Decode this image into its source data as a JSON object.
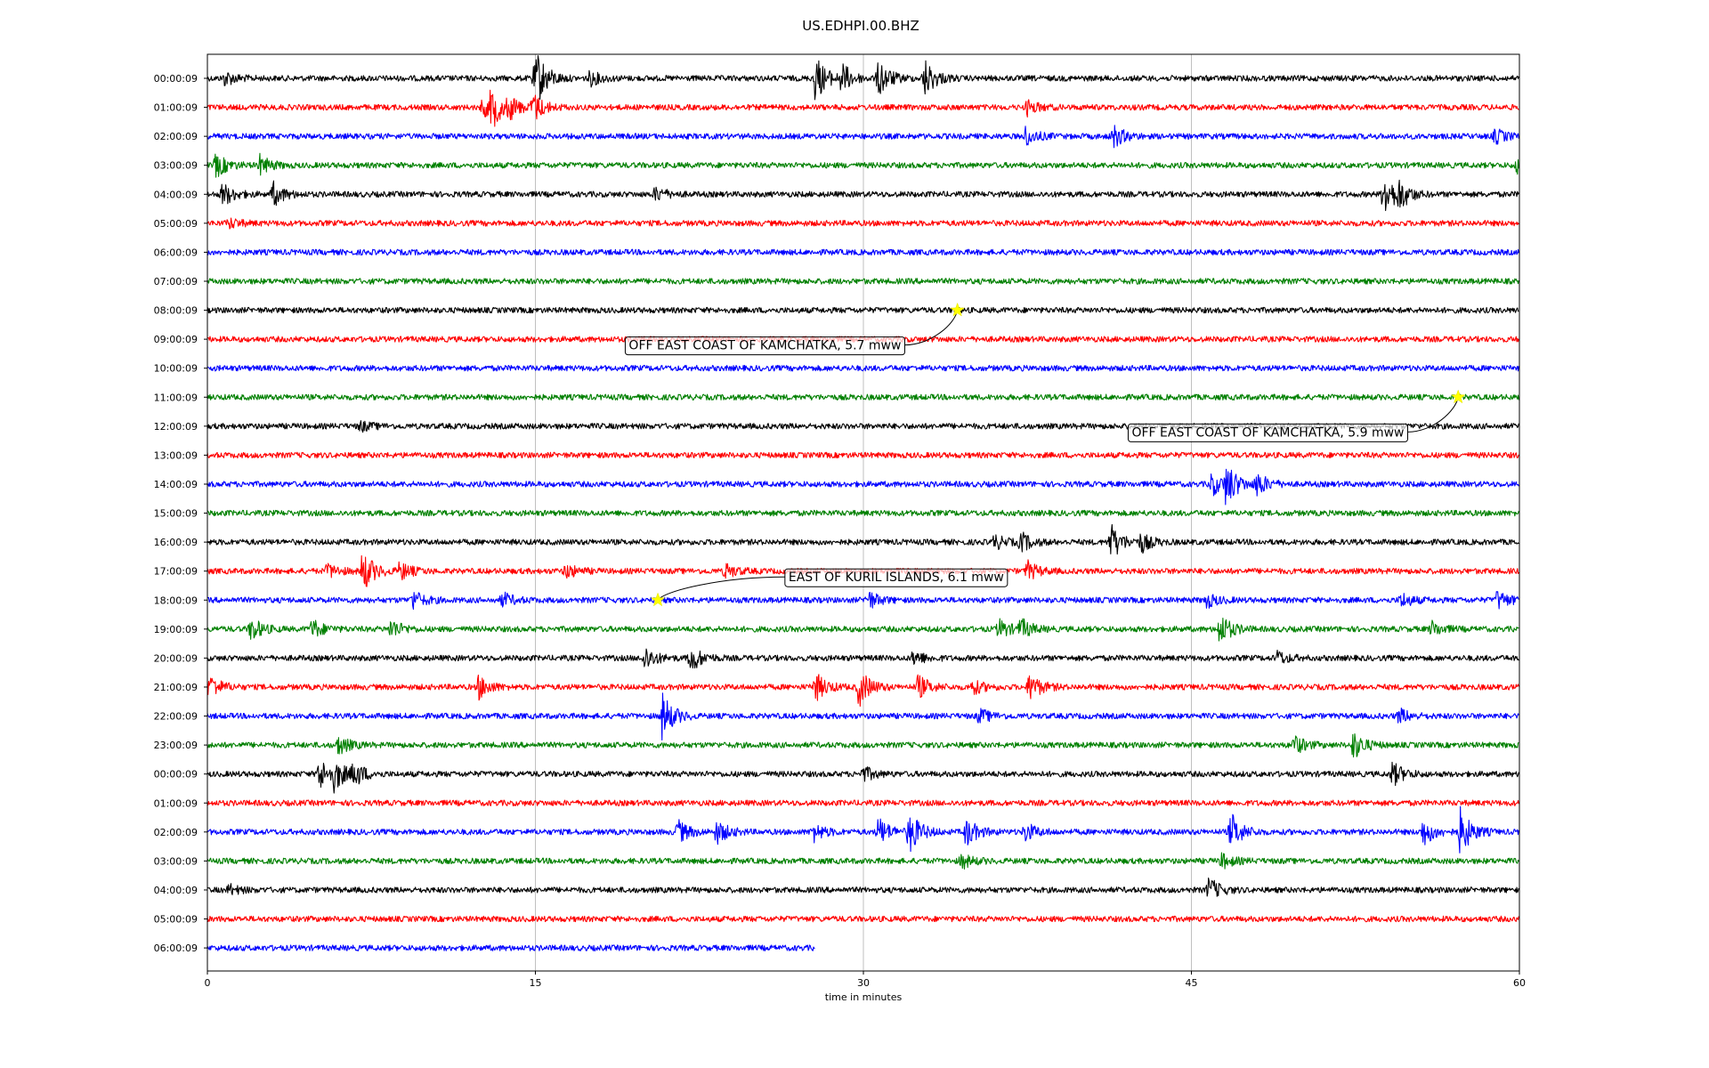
{
  "chart_data": {
    "type": "line",
    "title": "US.EDHPI.00.BHZ",
    "xlabel": "time in minutes",
    "ylabel": "",
    "xlim": [
      0,
      60
    ],
    "xticks": [
      "0",
      "15",
      "30",
      "45",
      "60"
    ],
    "grid": "vertical at x ticks",
    "line_colors": [
      "#000000",
      "#ff0000",
      "#0000ff",
      "#008000"
    ],
    "rows": [
      {
        "label": "00:00:09",
        "end": 60,
        "events": [
          [
            0.8,
            0.3
          ],
          [
            14.9,
            0.4
          ],
          [
            15.1,
            0.8
          ],
          [
            17.5,
            0.3
          ],
          [
            27.8,
            1.0
          ],
          [
            29.0,
            0.6
          ],
          [
            30.7,
            0.8
          ],
          [
            32.8,
            0.8
          ]
        ]
      },
      {
        "label": "01:00:09",
        "end": 60,
        "events": [
          [
            12.6,
            0.4
          ],
          [
            13.0,
            0.8
          ],
          [
            13.8,
            0.4
          ],
          [
            14.9,
            0.6
          ],
          [
            37.5,
            0.3
          ]
        ]
      },
      {
        "label": "02:00:09",
        "end": 60,
        "events": [
          [
            37.4,
            0.4
          ],
          [
            41.4,
            0.5
          ],
          [
            58.9,
            0.3
          ]
        ]
      },
      {
        "label": "03:00:09",
        "end": 60,
        "events": [
          [
            0.4,
            0.5
          ],
          [
            2.4,
            0.4
          ],
          [
            59.9,
            0.3
          ]
        ]
      },
      {
        "label": "04:00:09",
        "end": 60,
        "events": [
          [
            0.7,
            0.5
          ],
          [
            3.0,
            0.5
          ],
          [
            20.5,
            0.3
          ],
          [
            53.8,
            1.0
          ],
          [
            54.5,
            0.5
          ]
        ]
      },
      {
        "label": "05:00:09",
        "end": 60,
        "events": [
          [
            1.0,
            0.2
          ]
        ]
      },
      {
        "label": "06:00:09",
        "end": 60,
        "events": []
      },
      {
        "label": "07:00:09",
        "end": 60,
        "events": []
      },
      {
        "label": "08:00:09",
        "end": 60,
        "events": []
      },
      {
        "label": "09:00:09",
        "end": 60,
        "events": []
      },
      {
        "label": "10:00:09",
        "end": 60,
        "events": []
      },
      {
        "label": "11:00:09",
        "end": 60,
        "events": []
      },
      {
        "label": "12:00:09",
        "end": 60,
        "events": [
          [
            7.0,
            0.2
          ]
        ]
      },
      {
        "label": "13:00:09",
        "end": 60,
        "events": []
      },
      {
        "label": "14:00:09",
        "end": 60,
        "events": [
          [
            45.9,
            0.5
          ],
          [
            46.6,
            0.9
          ],
          [
            48.0,
            0.5
          ]
        ]
      },
      {
        "label": "15:00:09",
        "end": 60,
        "events": []
      },
      {
        "label": "16:00:09",
        "end": 60,
        "events": [
          [
            36.0,
            0.3
          ],
          [
            37.2,
            0.4
          ],
          [
            41.3,
            0.8
          ],
          [
            42.7,
            0.4
          ]
        ]
      },
      {
        "label": "17:00:09",
        "end": 60,
        "events": [
          [
            5.5,
            0.3
          ],
          [
            7.1,
            0.9
          ],
          [
            8.8,
            0.4
          ],
          [
            16.4,
            0.3
          ],
          [
            23.7,
            0.3
          ],
          [
            37.5,
            0.4
          ]
        ]
      },
      {
        "label": "18:00:09",
        "end": 60,
        "events": [
          [
            9.4,
            0.4
          ],
          [
            13.5,
            0.3
          ],
          [
            30.2,
            0.4
          ],
          [
            45.7,
            0.3
          ],
          [
            54.6,
            0.3
          ],
          [
            59.0,
            0.4
          ]
        ]
      },
      {
        "label": "19:00:09",
        "end": 60,
        "events": [
          [
            2.0,
            0.5
          ],
          [
            4.8,
            0.4
          ],
          [
            8.4,
            0.4
          ],
          [
            36.2,
            0.4
          ],
          [
            37.2,
            0.4
          ],
          [
            46.3,
            0.7
          ],
          [
            56.0,
            0.3
          ]
        ]
      },
      {
        "label": "20:00:09",
        "end": 60,
        "events": [
          [
            20.0,
            0.5
          ],
          [
            22.1,
            0.6
          ],
          [
            32.3,
            0.3
          ],
          [
            48.9,
            0.3
          ]
        ]
      },
      {
        "label": "21:00:09",
        "end": 60,
        "events": [
          [
            0.1,
            0.5
          ],
          [
            12.4,
            0.5
          ],
          [
            27.8,
            0.6
          ],
          [
            29.8,
            0.8
          ],
          [
            32.5,
            0.5
          ],
          [
            35.0,
            0.3
          ],
          [
            37.6,
            0.6
          ]
        ]
      },
      {
        "label": "22:00:09",
        "end": 60,
        "events": [
          [
            20.8,
            1.0
          ],
          [
            35.3,
            0.3
          ],
          [
            54.5,
            0.3
          ]
        ]
      },
      {
        "label": "23:00:09",
        "end": 60,
        "events": [
          [
            6.0,
            0.4
          ],
          [
            49.7,
            0.4
          ],
          [
            52.4,
            0.6
          ]
        ]
      },
      {
        "label": "00:00:09",
        "end": 60,
        "events": [
          [
            5.1,
            0.7
          ],
          [
            5.8,
            0.6
          ],
          [
            6.7,
            0.5
          ],
          [
            30.0,
            0.3
          ],
          [
            54.2,
            0.5
          ]
        ]
      },
      {
        "label": "01:00:09",
        "end": 60,
        "events": []
      },
      {
        "label": "02:00:09",
        "end": 60,
        "events": [
          [
            21.5,
            0.5
          ],
          [
            23.3,
            0.5
          ],
          [
            27.7,
            0.4
          ],
          [
            30.7,
            0.6
          ],
          [
            32.1,
            0.9
          ],
          [
            34.7,
            0.6
          ],
          [
            37.4,
            0.4
          ],
          [
            46.8,
            0.8
          ],
          [
            55.6,
            0.6
          ],
          [
            57.3,
            1.0
          ]
        ]
      },
      {
        "label": "03:00:09",
        "end": 60,
        "events": [
          [
            34.5,
            0.3
          ],
          [
            46.4,
            0.3
          ]
        ]
      },
      {
        "label": "04:00:09",
        "end": 60,
        "events": [
          [
            1.0,
            0.2
          ],
          [
            45.8,
            0.5
          ]
        ]
      },
      {
        "label": "05:00:09",
        "end": 60,
        "events": []
      },
      {
        "label": "06:00:09",
        "end": 27.8,
        "events": []
      }
    ],
    "annotations": [
      {
        "text": "OFF EAST COAST OF KAMCHATKA, 5.7 mww",
        "row": 8,
        "x": 34.3,
        "box_x": 25.5,
        "box_row": 9.2
      },
      {
        "text": "OFF EAST COAST OF KAMCHATKA, 5.9 mww",
        "row": 11,
        "x": 57.2,
        "box_x": 48.5,
        "box_row": 12.2
      },
      {
        "text": "EAST OF KURIL ISLANDS, 6.1 mww",
        "row": 18,
        "x": 20.6,
        "box_x": 31.5,
        "box_row": 17.2
      }
    ],
    "marker_color": "#ffff00"
  }
}
